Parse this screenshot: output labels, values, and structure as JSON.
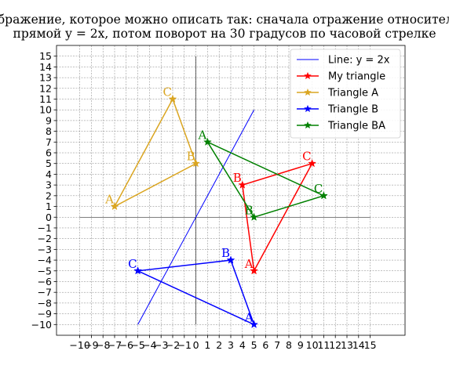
{
  "chart_data": {
    "type": "line",
    "title_lines": [
      "Отображение, которое можно описать так: сначала отражение относительно",
      "прямой y = 2x, потом поворот на 30 градусов по часовой стрелке"
    ],
    "xlim": [
      -12,
      18
    ],
    "ylim": [
      -11,
      16
    ],
    "x_ticks": [
      -10,
      -9,
      -8,
      -7,
      -6,
      -5,
      -4,
      -3,
      -2,
      -1,
      0,
      1,
      2,
      3,
      4,
      5,
      6,
      7,
      8,
      9,
      10,
      11,
      12,
      13,
      14,
      15
    ],
    "x_tick_labels": [
      "−10",
      "−9",
      "−8",
      "−7",
      "−6",
      "−5",
      "−4",
      "−3",
      "−2",
      "−1",
      "0",
      "1",
      "2",
      "3",
      "4",
      "5",
      "6",
      "7",
      "8",
      "9",
      "10",
      "11",
      "12",
      "13",
      "14",
      "15"
    ],
    "y_ticks": [
      -10,
      -9,
      -8,
      -7,
      -6,
      -5,
      -4,
      -3,
      -2,
      -1,
      0,
      1,
      2,
      3,
      4,
      5,
      6,
      7,
      8,
      9,
      10,
      11,
      12,
      13,
      14,
      15
    ],
    "y_tick_labels": [
      "−10",
      "−9",
      "−8",
      "−7",
      "−6",
      "−5",
      "−4",
      "−3",
      "−2",
      "−1",
      "0",
      "1",
      "2",
      "3",
      "4",
      "5",
      "6",
      "7",
      "8",
      "9",
      "10",
      "11",
      "12",
      "13",
      "14",
      "15"
    ],
    "grid": true,
    "legend_position": "top-right",
    "axes_lines": {
      "x_range": [
        -10,
        15
      ],
      "y_range": [
        -10,
        15
      ]
    },
    "series": [
      {
        "name": "Line: y = 2x",
        "kind": "line",
        "color": "#0000ff",
        "points": [
          [
            -5,
            -10
          ],
          [
            5,
            10
          ]
        ]
      },
      {
        "name": "My triangle",
        "kind": "triangle",
        "color": "#ff0000",
        "points": [
          [
            5,
            -5
          ],
          [
            4,
            3
          ],
          [
            10,
            5
          ],
          [
            5,
            -5
          ]
        ],
        "labels": [
          {
            "text": "A",
            "x": 5,
            "y": -5
          },
          {
            "text": "B",
            "x": 4,
            "y": 3
          },
          {
            "text": "C",
            "x": 10,
            "y": 5
          }
        ]
      },
      {
        "name": "Triangle A",
        "kind": "triangle",
        "color": "#daa520",
        "points": [
          [
            -7,
            1
          ],
          [
            0,
            5
          ],
          [
            -2,
            11
          ],
          [
            -7,
            1
          ]
        ],
        "labels": [
          {
            "text": "A",
            "x": -7,
            "y": 1
          },
          {
            "text": "B",
            "x": 0,
            "y": 5
          },
          {
            "text": "C",
            "x": -2,
            "y": 11
          }
        ]
      },
      {
        "name": "Triangle B",
        "kind": "triangle",
        "color": "#0000ff",
        "points": [
          [
            5,
            -10
          ],
          [
            3,
            -4
          ],
          [
            -5,
            -5
          ],
          [
            5,
            -10
          ]
        ],
        "labels": [
          {
            "text": "A",
            "x": 5,
            "y": -10
          },
          {
            "text": "B",
            "x": 3,
            "y": -4
          },
          {
            "text": "C",
            "x": -5,
            "y": -5
          }
        ]
      },
      {
        "name": "Triangle BA",
        "kind": "triangle",
        "color": "#008000",
        "points": [
          [
            1,
            7
          ],
          [
            5,
            0
          ],
          [
            11,
            2
          ],
          [
            1,
            7
          ]
        ],
        "labels": [
          {
            "text": "A",
            "x": 1,
            "y": 7
          },
          {
            "text": "B",
            "x": 5,
            "y": 0
          },
          {
            "text": "C",
            "x": 11,
            "y": 2
          }
        ]
      }
    ]
  }
}
